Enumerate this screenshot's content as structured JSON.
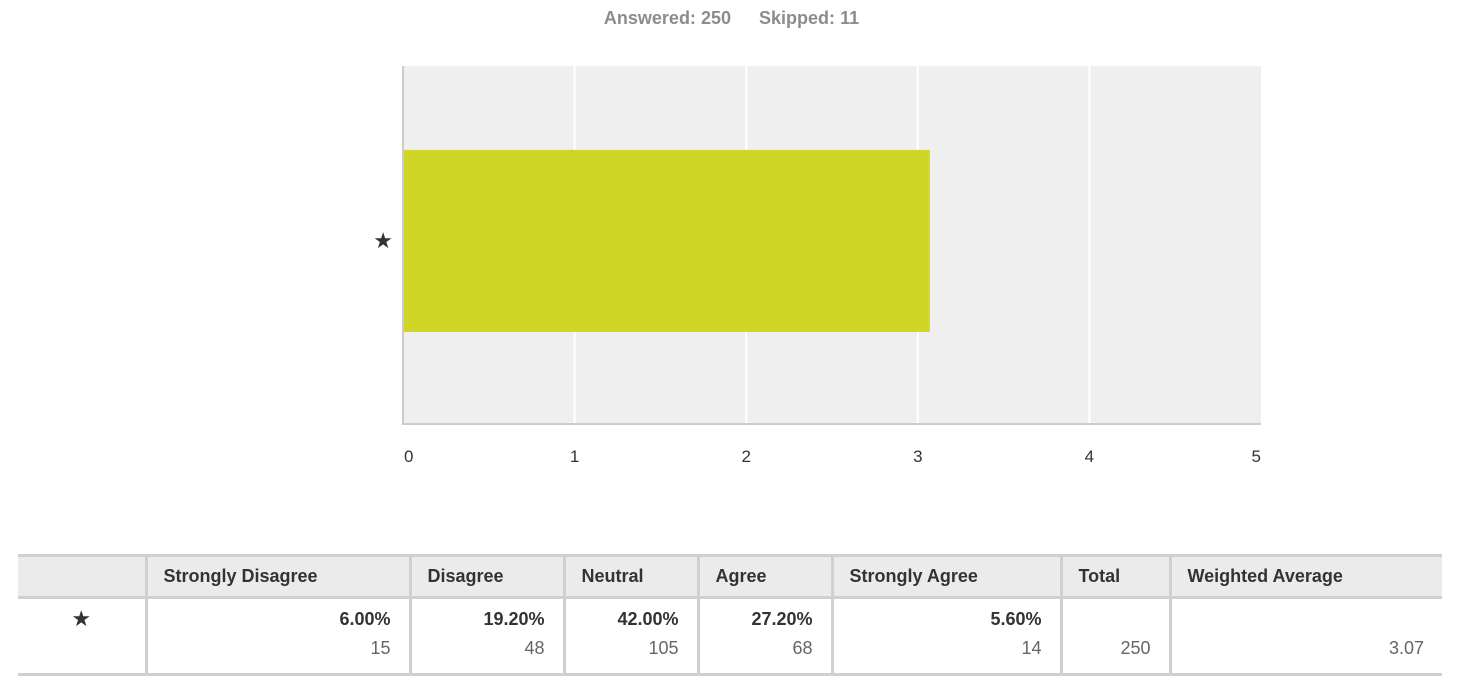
{
  "summary": {
    "answered_label": "Answered:",
    "answered_value": "250",
    "skipped_label": "Skipped:",
    "skipped_value": "11"
  },
  "chart_data": {
    "type": "bar",
    "orientation": "horizontal",
    "categories": [
      "★"
    ],
    "values": [
      3.07
    ],
    "xlim": [
      0,
      5
    ],
    "xticks": [
      "0",
      "1",
      "2",
      "3",
      "4",
      "5"
    ],
    "grid": true,
    "bar_color": "#cfd626",
    "background_color": "#efefef"
  },
  "table": {
    "headers": [
      "",
      "Strongly Disagree",
      "Disagree",
      "Neutral",
      "Agree",
      "Strongly Agree",
      "Total",
      "Weighted Average"
    ],
    "row": {
      "label": "★",
      "cells": [
        {
          "pct": "6.00%",
          "count": "15"
        },
        {
          "pct": "19.20%",
          "count": "48"
        },
        {
          "pct": "42.00%",
          "count": "105"
        },
        {
          "pct": "27.20%",
          "count": "68"
        },
        {
          "pct": "5.60%",
          "count": "14"
        }
      ],
      "total": "250",
      "weighted_average": "3.07"
    }
  }
}
